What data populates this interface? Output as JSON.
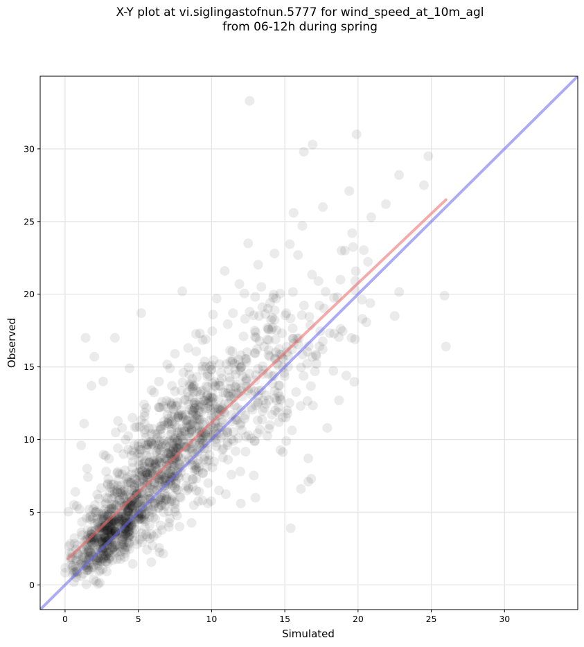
{
  "title_line1": "X-Y plot at vi.siglingastofnun.5777 for wind_speed_at_10m_agl",
  "title_line2": "from 06-12h during spring",
  "chart_data": {
    "type": "scatter",
    "xlabel": "Simulated",
    "ylabel": "Observed",
    "xlim": [
      -1.7,
      35.0
    ],
    "ylim": [
      -1.7,
      35.0
    ],
    "xticks": [
      0,
      5,
      10,
      15,
      20,
      25,
      30
    ],
    "yticks": [
      0,
      5,
      10,
      15,
      20,
      25,
      30
    ],
    "grid": true,
    "colors": {
      "points": "#000000",
      "fit_line": "#ee6666",
      "identity_line": "#6666ee"
    },
    "lines": [
      {
        "role": "regression fit",
        "color": "#ee6666",
        "x": [
          0.2,
          26.0
        ],
        "y": [
          1.8,
          26.5
        ]
      },
      {
        "role": "1:1 identity",
        "color": "#6666ee",
        "x": [
          -1.7,
          35.0
        ],
        "y": [
          -1.7,
          35.0
        ]
      }
    ],
    "points_x": [
      12.6,
      19.9,
      16.3,
      16.9,
      24.8,
      22.8,
      24.5,
      21.9,
      20.9,
      19.6,
      19.4,
      19.1,
      18.8,
      17.6,
      15.6,
      16.2,
      25.9,
      26.0,
      22.5,
      15.5,
      15.4,
      16.6,
      16.8,
      12.5,
      14.3,
      13.4,
      14.0,
      15.1,
      13.9,
      12.6,
      12.0,
      11.3,
      10.0,
      9.0,
      9.6,
      10.1,
      8.0,
      7.5,
      6.7,
      5.9,
      5.2,
      4.4,
      3.9,
      3.4,
      2.6,
      2.0,
      1.8,
      1.4,
      1.3,
      1.1,
      1.5,
      0.7,
      0.6,
      2.1,
      2.8,
      3.6,
      4.6,
      5.3,
      6.3,
      6.9,
      7.8,
      8.2,
      8.7,
      9.5,
      10.4,
      11.6,
      12.7,
      14.6,
      15.1,
      16.1,
      16.6,
      17.9,
      18.7,
      19.2,
      19.8,
      20.3,
      17.3,
      15.9,
      14.4,
      11.9,
      10.9,
      9.2,
      8.4,
      7.3,
      12.0,
      13.0
    ],
    "points_y": [
      33.3,
      31.0,
      29.8,
      30.3,
      29.5,
      28.2,
      27.5,
      26.2,
      25.3,
      24.2,
      27.1,
      23.0,
      21.0,
      26.0,
      25.6,
      24.7,
      19.9,
      16.4,
      18.5,
      16.2,
      3.9,
      7.1,
      7.3,
      23.5,
      22.8,
      20.5,
      19.4,
      18.7,
      17.6,
      18.8,
      15.8,
      13.5,
      15.1,
      14.3,
      16.9,
      18.6,
      20.2,
      15.9,
      12.3,
      13.4,
      18.7,
      14.9,
      10.8,
      17.0,
      14.0,
      15.7,
      13.7,
      17.0,
      11.1,
      9.6,
      8.0,
      6.4,
      5.5,
      5.0,
      7.8,
      9.4,
      11.5,
      8.3,
      6.5,
      7.9,
      10.5,
      11.7,
      12.9,
      9.4,
      12.1,
      14.8,
      12.2,
      11.2,
      9.9,
      6.6,
      8.7,
      10.8,
      12.7,
      14.4,
      16.9,
      18.3,
      20.9,
      22.7,
      19.7,
      20.7,
      21.6,
      17.3,
      16.3,
      13.7,
      5.6,
      6.0
    ],
    "point_clusters": [
      {
        "cx": 2.8,
        "cy": 3.2,
        "sx": 1.4,
        "sy": 1.4,
        "n": 380
      },
      {
        "cx": 4.5,
        "cy": 5.0,
        "sx": 1.8,
        "sy": 2.0,
        "n": 260
      },
      {
        "cx": 6.8,
        "cy": 8.8,
        "sx": 2.0,
        "sy": 2.8,
        "n": 380
      },
      {
        "cx": 10.0,
        "cy": 11.5,
        "sx": 2.6,
        "sy": 3.2,
        "n": 300
      },
      {
        "cx": 14.5,
        "cy": 15.5,
        "sx": 2.8,
        "sy": 3.8,
        "n": 160
      }
    ]
  }
}
